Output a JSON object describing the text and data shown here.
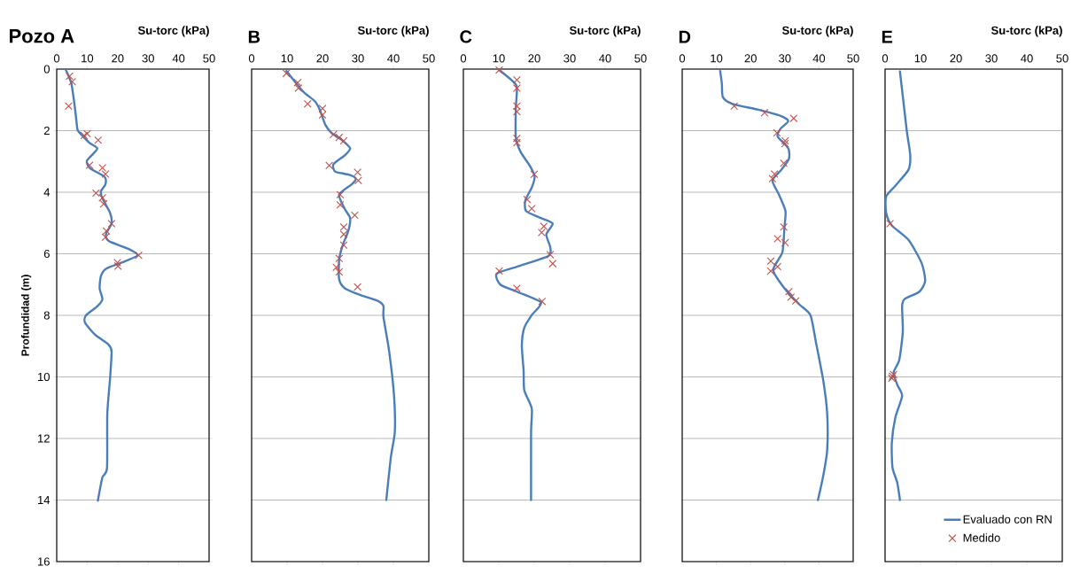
{
  "chart_data": [
    {
      "type": "line",
      "title": "Pozo A",
      "xlabel": "Su-torc (kPa)",
      "ylabel": "Profundidad (m)",
      "xlim": [
        0,
        50
      ],
      "ylim": [
        16,
        0
      ],
      "xticks": [
        0,
        10,
        20,
        30,
        40,
        50
      ],
      "yticks": [
        0,
        2,
        4,
        6,
        8,
        10,
        12,
        14,
        16
      ],
      "grid": "y",
      "series": [
        {
          "color": "#4a7ebb",
          "marker": "none",
          "x": [
            3,
            4.8,
            6,
            6.6,
            6.9,
            8.4,
            10.8,
            13.3,
            12,
            9.9,
            10.8,
            15.7,
            16,
            14.5,
            15,
            17.5,
            18,
            16.3,
            16.3,
            17.5,
            23.5,
            26.5,
            22.3,
            16.3,
            14.5,
            14.1,
            15,
            13.3,
            9.6,
            9.3,
            12.7,
            16.9,
            18,
            17.5,
            16.6,
            16.5,
            15,
            13.5
          ],
          "values": [
            0.03,
            0.47,
            1.28,
            1.81,
            1.99,
            2.16,
            2.4,
            2.57,
            2.75,
            2.98,
            3.21,
            3.5,
            3.74,
            3.97,
            4.2,
            4.67,
            5.02,
            5.32,
            5.5,
            5.61,
            5.84,
            6.05,
            6.25,
            6.48,
            6.72,
            7.13,
            7.48,
            7.71,
            8.0,
            8.24,
            8.64,
            8.94,
            9.17,
            10.05,
            11.2,
            12.97,
            13.26,
            14.02
          ]
        },
        {
          "type": "scatter",
          "color": "#c0504d",
          "marker": "cross",
          "x": [
            4.2,
            5.1,
            3.9,
            9,
            10,
            13.6,
            10.8,
            15,
            16,
            12.9,
            15,
            15.4,
            18,
            16.3,
            16,
            26.9,
            19.9,
            20.1
          ],
          "values": [
            0.23,
            0.41,
            1.2,
            2.16,
            2.1,
            2.31,
            3.12,
            3.21,
            3.41,
            4.03,
            4.18,
            4.38,
            5.02,
            5.26,
            5.46,
            6.05,
            6.29,
            6.4
          ]
        }
      ]
    },
    {
      "type": "line",
      "title": "B",
      "xlabel": "Su-torc (kPa)",
      "xlim": [
        0,
        50
      ],
      "ylim": [
        16,
        0
      ],
      "xticks": [
        0,
        10,
        20,
        30,
        40,
        50
      ],
      "yticks": [
        0,
        2,
        4,
        6,
        8,
        10,
        12,
        14,
        16
      ],
      "grid": "y",
      "tick_labels": "x",
      "series": [
        {
          "color": "#4a7ebb",
          "marker": "none",
          "x": [
            9.8,
            12.2,
            14.8,
            17.9,
            19.3,
            20.8,
            22.6,
            25.2,
            27.8,
            26.3,
            23.1,
            23.6,
            27.8,
            29.4,
            28.4,
            24.7,
            26.3,
            27.8,
            27.3,
            25.7,
            24.7,
            24.7,
            26.3,
            30.9,
            35.6,
            37.2,
            37.2,
            38.8,
            40.2,
            40.4,
            39.3,
            38
          ],
          "values": [
            0.06,
            0.41,
            0.76,
            1.05,
            1.34,
            1.81,
            2.08,
            2.28,
            2.57,
            2.8,
            3.09,
            3.33,
            3.44,
            3.56,
            3.73,
            4.08,
            4.55,
            4.84,
            5.25,
            5.72,
            6.18,
            6.83,
            7.12,
            7.35,
            7.53,
            7.7,
            8.05,
            9.16,
            10.62,
            11.79,
            12.6,
            14.0
          ]
        },
        {
          "type": "scatter",
          "color": "#c0504d",
          "marker": "cross",
          "x": [
            9.8,
            13,
            13.2,
            15.8,
            20,
            20,
            23.1,
            24.7,
            26,
            21.9,
            29.9,
            30.1,
            25,
            25,
            29.1,
            26,
            26,
            26,
            24.7,
            23.9,
            24.7,
            29.9
          ],
          "values": [
            0.14,
            0.44,
            0.62,
            1.13,
            1.28,
            1.49,
            2.12,
            2.22,
            2.33,
            3.13,
            3.35,
            3.62,
            4.08,
            4.41,
            4.75,
            5.13,
            5.37,
            5.72,
            6.15,
            6.44,
            6.59,
            7.08
          ]
        }
      ]
    },
    {
      "type": "line",
      "title": "C",
      "xlabel": "Su-torc (kPa)",
      "xlim": [
        0,
        50
      ],
      "ylim": [
        16,
        0
      ],
      "xticks": [
        0,
        10,
        20,
        30,
        40,
        50
      ],
      "yticks": [
        0,
        2,
        4,
        6,
        8,
        10,
        12,
        14,
        16
      ],
      "grid": "y",
      "tick_labels": "x",
      "series": [
        {
          "color": "#4a7ebb",
          "marker": "none",
          "x": [
            10.1,
            13.5,
            15.1,
            14.8,
            14.8,
            16.1,
            18.8,
            20.1,
            19.3,
            17.5,
            17.7,
            21.9,
            25.2,
            23.4,
            24.5,
            24,
            15.1,
            9.4,
            10.4,
            15.1,
            21.9,
            19.3,
            17.2,
            16.5,
            17,
            17.2,
            19.3,
            19.1,
            19.1
          ],
          "values": [
            0.03,
            0.35,
            0.58,
            1.28,
            2.22,
            2.68,
            3.15,
            3.5,
            3.85,
            4.26,
            4.61,
            4.84,
            5.02,
            5.37,
            5.78,
            6.07,
            6.42,
            6.65,
            7.0,
            7.23,
            7.58,
            7.99,
            8.4,
            8.98,
            9.8,
            10.44,
            11.03,
            11.79,
            14.0
          ]
        },
        {
          "type": "scatter",
          "color": "#c0504d",
          "marker": "cross",
          "x": [
            10.1,
            15.1,
            15.1,
            15.1,
            15.1,
            15.1,
            15.1,
            20,
            18,
            19.3,
            22.7,
            22.1,
            24.5,
            25.2,
            10.1,
            15.1,
            22.2
          ],
          "values": [
            0.03,
            0.35,
            0.62,
            1.2,
            1.38,
            2.25,
            2.39,
            3.42,
            4.24,
            4.53,
            5.11,
            5.31,
            6.03,
            6.32,
            6.56,
            7.12,
            7.55
          ]
        }
      ]
    },
    {
      "type": "line",
      "title": "D",
      "xlabel": "Su-torc (kPa)",
      "xlim": [
        0,
        50
      ],
      "ylim": [
        16,
        0
      ],
      "xticks": [
        0,
        10,
        20,
        30,
        40,
        50
      ],
      "yticks": [
        0,
        2,
        4,
        6,
        8,
        10,
        12,
        14,
        16
      ],
      "grid": "y",
      "tick_labels": "x",
      "series": [
        {
          "color": "#4a7ebb",
          "marker": "none",
          "x": [
            11.1,
            11.6,
            11.9,
            14.7,
            22.3,
            28.8,
            31,
            28.8,
            27.9,
            31,
            31.2,
            29,
            26.4,
            28.3,
            30.2,
            29.9,
            29.3,
            26.6,
            29.9,
            34.2,
            37.5,
            39.1,
            41.3,
            42.4,
            42.4,
            41.3,
            39.7
          ],
          "values": [
            0.06,
            0.47,
            0.91,
            1.13,
            1.32,
            1.52,
            1.69,
            1.93,
            2.19,
            2.57,
            2.92,
            3.27,
            3.62,
            4.08,
            4.61,
            5.13,
            5.95,
            6.53,
            7.12,
            7.64,
            7.99,
            8.87,
            10.15,
            11.2,
            12.37,
            13.18,
            14.0
          ]
        },
        {
          "type": "scatter",
          "color": "#c0504d",
          "marker": "cross",
          "x": [
            15.2,
            24.1,
            32.6,
            27.7,
            30.1,
            30.1,
            29.7,
            27,
            26.4,
            29.7,
            27.9,
            30.1,
            25.9,
            27.9,
            25.9,
            31.2,
            31.8,
            33.2
          ],
          "values": [
            1.2,
            1.42,
            1.6,
            2.07,
            2.33,
            2.42,
            3.06,
            3.41,
            3.56,
            5.13,
            5.51,
            5.64,
            6.24,
            6.42,
            6.56,
            7.23,
            7.41,
            7.53
          ]
        }
      ]
    },
    {
      "type": "line",
      "title": "E",
      "xlabel": "Su-torc (kPa)",
      "xlim": [
        0,
        50
      ],
      "ylim": [
        16,
        0
      ],
      "xticks": [
        0,
        10,
        20,
        30,
        40,
        50
      ],
      "yticks": [
        0,
        2,
        4,
        6,
        8,
        10,
        12,
        14,
        16
      ],
      "grid": "y",
      "tick_labels": "x",
      "legend": "bottom right",
      "series": [
        {
          "name": "Evaluado con RN",
          "color": "#4a7ebb",
          "marker": "none",
          "x": [
            4.2,
            6.1,
            7.1,
            6.6,
            2.9,
            0.3,
            0.3,
            1.9,
            6.6,
            10.3,
            11.3,
            9.7,
            5.5,
            4.8,
            5,
            4,
            2.4,
            3.5,
            4.8,
            2.9,
            1.9,
            2.1,
            3.4,
            4.2
          ],
          "values": [
            0.08,
            1.98,
            2.8,
            3.27,
            3.79,
            4.14,
            4.67,
            5.08,
            5.55,
            6.3,
            6.88,
            7.23,
            7.47,
            7.7,
            8.52,
            9.45,
            9.86,
            10.27,
            10.62,
            11.32,
            12.14,
            12.95,
            13.42,
            14.0
          ]
        },
        {
          "type": "scatter",
          "name": "Medido",
          "color": "#c0504d",
          "marker": "cross",
          "x": [
            1.4,
            2.1,
            2.4,
            1.9
          ],
          "values": [
            5.02,
            9.98,
            9.92,
            10.04
          ]
        }
      ]
    }
  ]
}
